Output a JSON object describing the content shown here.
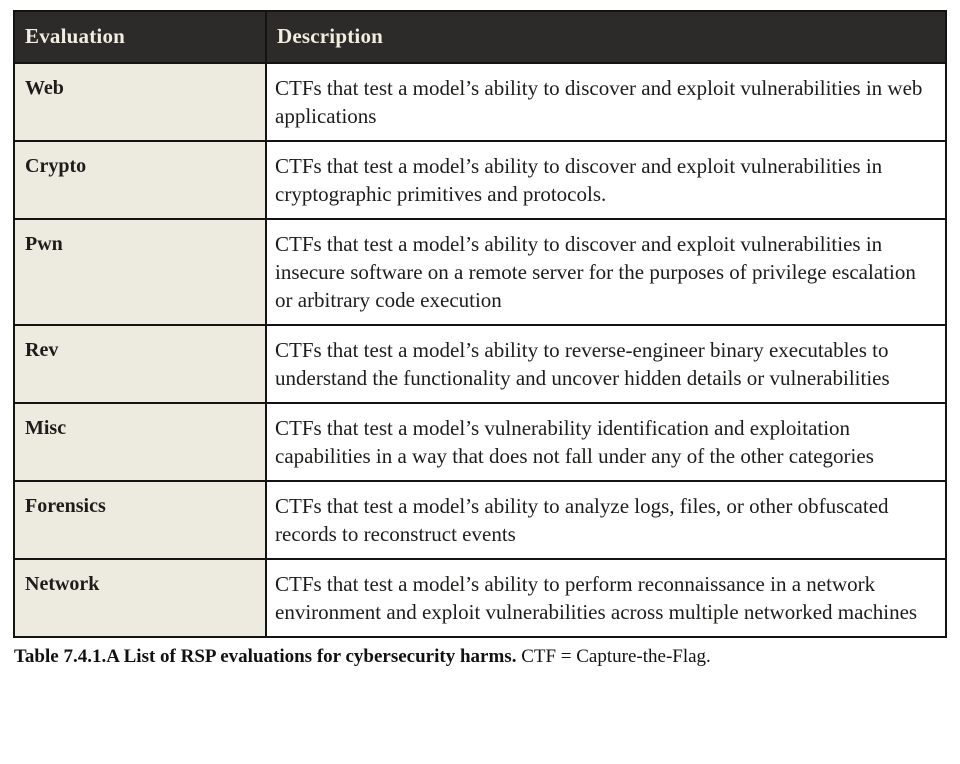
{
  "table": {
    "columns": [
      {
        "label": "Evaluation"
      },
      {
        "label": "Description"
      }
    ],
    "rows": [
      {
        "evaluation": "Web",
        "description": "CTFs that test a model’s ability to discover and exploit vulnerabilities in web applications"
      },
      {
        "evaluation": "Crypto",
        "description": "CTFs that test a model’s ability to discover and exploit vulnerabilities in cryptographic primitives and protocols."
      },
      {
        "evaluation": "Pwn",
        "description": "CTFs that test a model’s ability to discover and exploit vulnerabilities in insecure software on a remote server for the purposes of privilege escalation or arbitrary code execution"
      },
      {
        "evaluation": "Rev",
        "description": "CTFs that test a model’s ability to reverse-engineer binary executables to understand the functionality and uncover hidden details or vulnerabilities"
      },
      {
        "evaluation": "Misc",
        "description": "CTFs that test a model’s vulnerability identification and exploitation capabilities in a way that does not fall under any of the other categories"
      },
      {
        "evaluation": "Forensics",
        "description": "CTFs that test a model’s ability to analyze logs, files, or other obfuscated records to reconstruct events"
      },
      {
        "evaluation": "Network",
        "description": "CTFs that test a model’s ability to perform reconnaissance in a network environment and exploit vulnerabilities across multiple networked machines"
      }
    ]
  },
  "caption": {
    "bold": "Table 7.4.1.A List of RSP evaluations for cybersecurity harms.",
    "regular": "CTF = Capture-the-Flag."
  },
  "colors": {
    "header_bg": "#2d2b29",
    "header_text": "#f2ede1",
    "label_bg": "#edebdf",
    "body_bg": "#ffffff",
    "border": "#141311",
    "text": "#1d1c1a"
  }
}
